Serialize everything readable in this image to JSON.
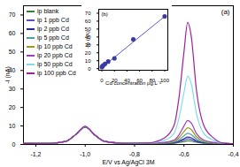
{
  "chart_data": [
    {
      "type": "line",
      "xlabel": "E/V vs Ag/AgCl 3M",
      "ylabel": "-I (nA)",
      "annotation": "(a)",
      "legend": "top-left",
      "x": [
        -1.25,
        -1.15,
        -1.08,
        -1.04,
        -1.0,
        -0.96,
        -0.92,
        -0.85,
        -0.75,
        -0.68,
        -0.64,
        -0.62,
        -0.6,
        -0.585,
        -0.57,
        -0.55,
        -0.52,
        -0.48,
        -0.44,
        -0.4
      ],
      "xlim": [
        -1.25,
        -0.4
      ],
      "xticks": [
        {
          "value": -1.2,
          "label": "-1,2"
        },
        {
          "value": -1.0,
          "label": "-1,0"
        },
        {
          "value": -0.8,
          "label": "-0,8"
        },
        {
          "value": -0.6,
          "label": "-0,6"
        },
        {
          "value": -0.4,
          "label": "-0,4"
        }
      ],
      "ylim": [
        0,
        75
      ],
      "yticks": [
        0,
        10,
        20,
        30,
        40,
        50,
        60,
        70
      ],
      "series": [
        {
          "name": "ip blank",
          "color": "#3a7a3a",
          "values": [
            0.5,
            0.6,
            1.6,
            5.2,
            9.4,
            5,
            1.6,
            0.7,
            0.6,
            0.6,
            0.7,
            1.1,
            1.6,
            2,
            1.8,
            1.2,
            0.7,
            0.6,
            0.5,
            0.4
          ]
        },
        {
          "name": "ip 1 ppb Cd",
          "color": "#5050c8",
          "values": [
            0.5,
            0.6,
            1.6,
            5.2,
            9.5,
            5,
            1.6,
            0.7,
            0.6,
            0.6,
            0.9,
            1.5,
            2.4,
            3,
            2.7,
            1.6,
            0.9,
            0.6,
            0.5,
            0.4
          ]
        },
        {
          "name": "ip 2 ppb Cd",
          "color": "#2a2a9a",
          "values": [
            0.5,
            0.6,
            1.6,
            5.2,
            9.5,
            5,
            1.6,
            0.7,
            0.6,
            0.7,
            1,
            1.8,
            3.1,
            4,
            3.6,
            2,
            1,
            0.7,
            0.5,
            0.4
          ]
        },
        {
          "name": "ip 5 ppb Cd",
          "color": "#4aa0a0",
          "values": [
            0.5,
            0.6,
            1.6,
            5.2,
            9.6,
            5,
            1.6,
            0.7,
            0.6,
            0.7,
            1.3,
            2.6,
            4.7,
            6,
            5.3,
            3,
            1.3,
            0.7,
            0.5,
            0.4
          ]
        },
        {
          "name": "ip 10 ppb Cd",
          "color": "#9a9a20",
          "values": [
            0.5,
            0.6,
            1.6,
            5.2,
            9.6,
            5,
            1.6,
            0.7,
            0.6,
            0.9,
            1.8,
            3.7,
            7,
            9,
            8,
            4.3,
            1.8,
            0.9,
            0.5,
            0.4
          ]
        },
        {
          "name": "ip 20 ppb Cd",
          "color": "#9a40c0",
          "values": [
            0.5,
            0.6,
            1.6,
            5.2,
            9.7,
            5,
            1.6,
            0.7,
            0.6,
            1.1,
            2.4,
            5.2,
            10,
            13,
            11.5,
            6,
            2.4,
            1.1,
            0.5,
            0.4
          ]
        },
        {
          "name": "ip 50 ppb Cd",
          "color": "#80dde8",
          "values": [
            0.5,
            0.6,
            1.6,
            5.2,
            9.8,
            5,
            1.6,
            0.7,
            0.7,
            2.2,
            6,
            14.5,
            28,
            37,
            32.5,
            17,
            6,
            2.2,
            0.6,
            0.4
          ]
        },
        {
          "name": "ip 100 ppb Cd",
          "color": "#a020a0",
          "values": [
            0.5,
            0.6,
            1.6,
            5.2,
            9.8,
            5,
            1.6,
            0.7,
            0.8,
            3.5,
            10.4,
            25.5,
            50,
            66,
            58,
            30,
            10.4,
            3.5,
            0.7,
            0.4
          ]
        }
      ]
    },
    {
      "type": "scatter",
      "xlabel": "Cd concentration μg.L⁻¹",
      "ylabel": "-Ip (nA)",
      "annotation": "(b)",
      "x": [
        0,
        1,
        2,
        5,
        10,
        20,
        50,
        100
      ],
      "values": [
        2,
        3,
        4,
        6,
        9,
        13,
        37,
        66
      ],
      "color": "#3a3aa0",
      "marker": "circle",
      "fit": {
        "x": [
          0,
          100
        ],
        "values": [
          1.5,
          66
        ],
        "color": "#5a5ad0"
      },
      "xlim": [
        -5,
        105
      ],
      "xticks": [
        0,
        20,
        40,
        60,
        80,
        100
      ],
      "ylim": [
        -2,
        75
      ],
      "yticks": [
        0,
        10,
        20,
        30,
        40,
        50,
        60,
        70
      ]
    }
  ]
}
